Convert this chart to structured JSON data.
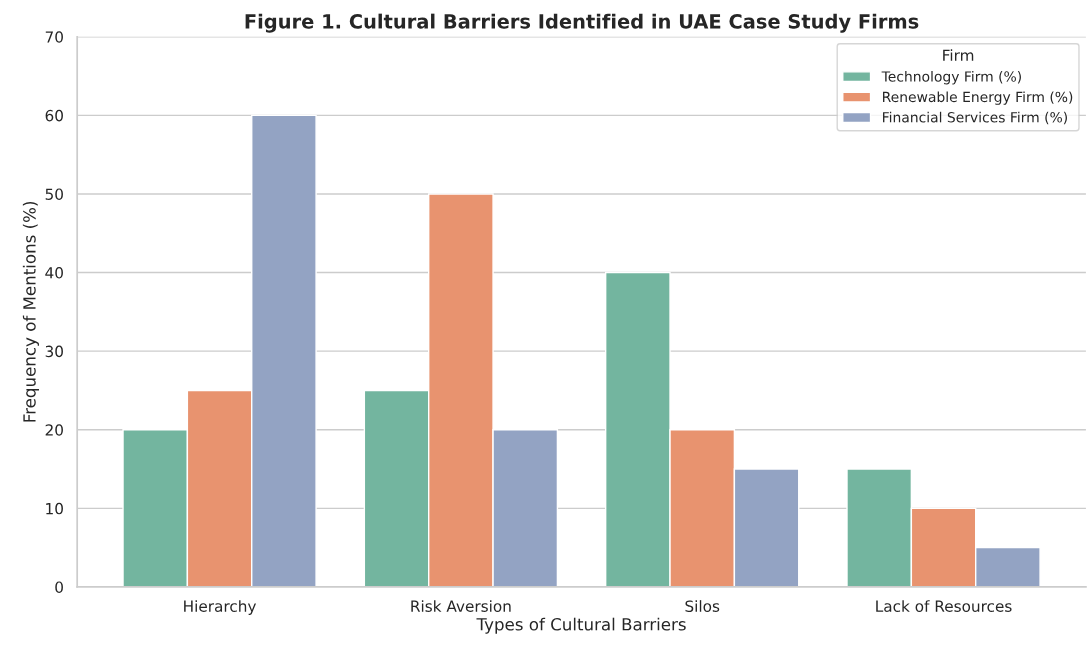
{
  "chart_data": {
    "type": "bar",
    "title": "Figure 1. Cultural Barriers Identified in UAE Case Study Firms",
    "xlabel": "Types of Cultural Barriers",
    "ylabel": "Frequency of Mentions (%)",
    "legend_title": "Firm",
    "categories": [
      "Hierarchy",
      "Risk Aversion",
      "Silos",
      "Lack of Resources"
    ],
    "series": [
      {
        "name": "Technology Firm (%)",
        "color": "#73b59f",
        "values": [
          20,
          25,
          40,
          15
        ]
      },
      {
        "name": "Renewable Energy Firm (%)",
        "color": "#e8936f",
        "values": [
          25,
          50,
          20,
          10
        ]
      },
      {
        "name": "Financial Services Firm (%)",
        "color": "#93a3c3",
        "values": [
          60,
          20,
          15,
          5
        ]
      }
    ],
    "ylim": [
      0,
      70
    ],
    "yticks": [
      0,
      10,
      20,
      30,
      40,
      50,
      60,
      70
    ],
    "grid": "y",
    "legend": "top right"
  }
}
